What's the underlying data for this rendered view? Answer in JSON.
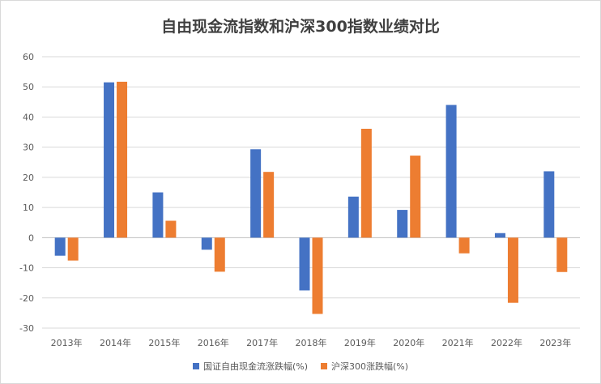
{
  "chart_data": {
    "type": "bar",
    "title": "自由现金流指数和沪深300指数业绩对比",
    "categories": [
      "2013年",
      "2014年",
      "2015年",
      "2016年",
      "2017年",
      "2018年",
      "2019年",
      "2020年",
      "2021年",
      "2022年",
      "2023年"
    ],
    "series": [
      {
        "name": "国证自由现金流涨跌幅(%)",
        "color": "#4472C4",
        "values": [
          -6.0,
          51.5,
          15.0,
          -4.0,
          29.3,
          -17.5,
          13.6,
          9.2,
          44.0,
          1.5,
          22.0
        ]
      },
      {
        "name": "沪深300涨跌幅(%)",
        "color": "#ED7D31",
        "values": [
          -7.6,
          51.7,
          5.6,
          -11.3,
          21.8,
          -25.3,
          36.1,
          27.2,
          -5.2,
          -21.6,
          -11.4
        ]
      }
    ],
    "ylim": [
      -30,
      60
    ],
    "yticks": [
      60,
      50,
      40,
      30,
      20,
      10,
      0,
      -10,
      -20,
      -30
    ],
    "grid": true,
    "legend_position": "bottom"
  }
}
